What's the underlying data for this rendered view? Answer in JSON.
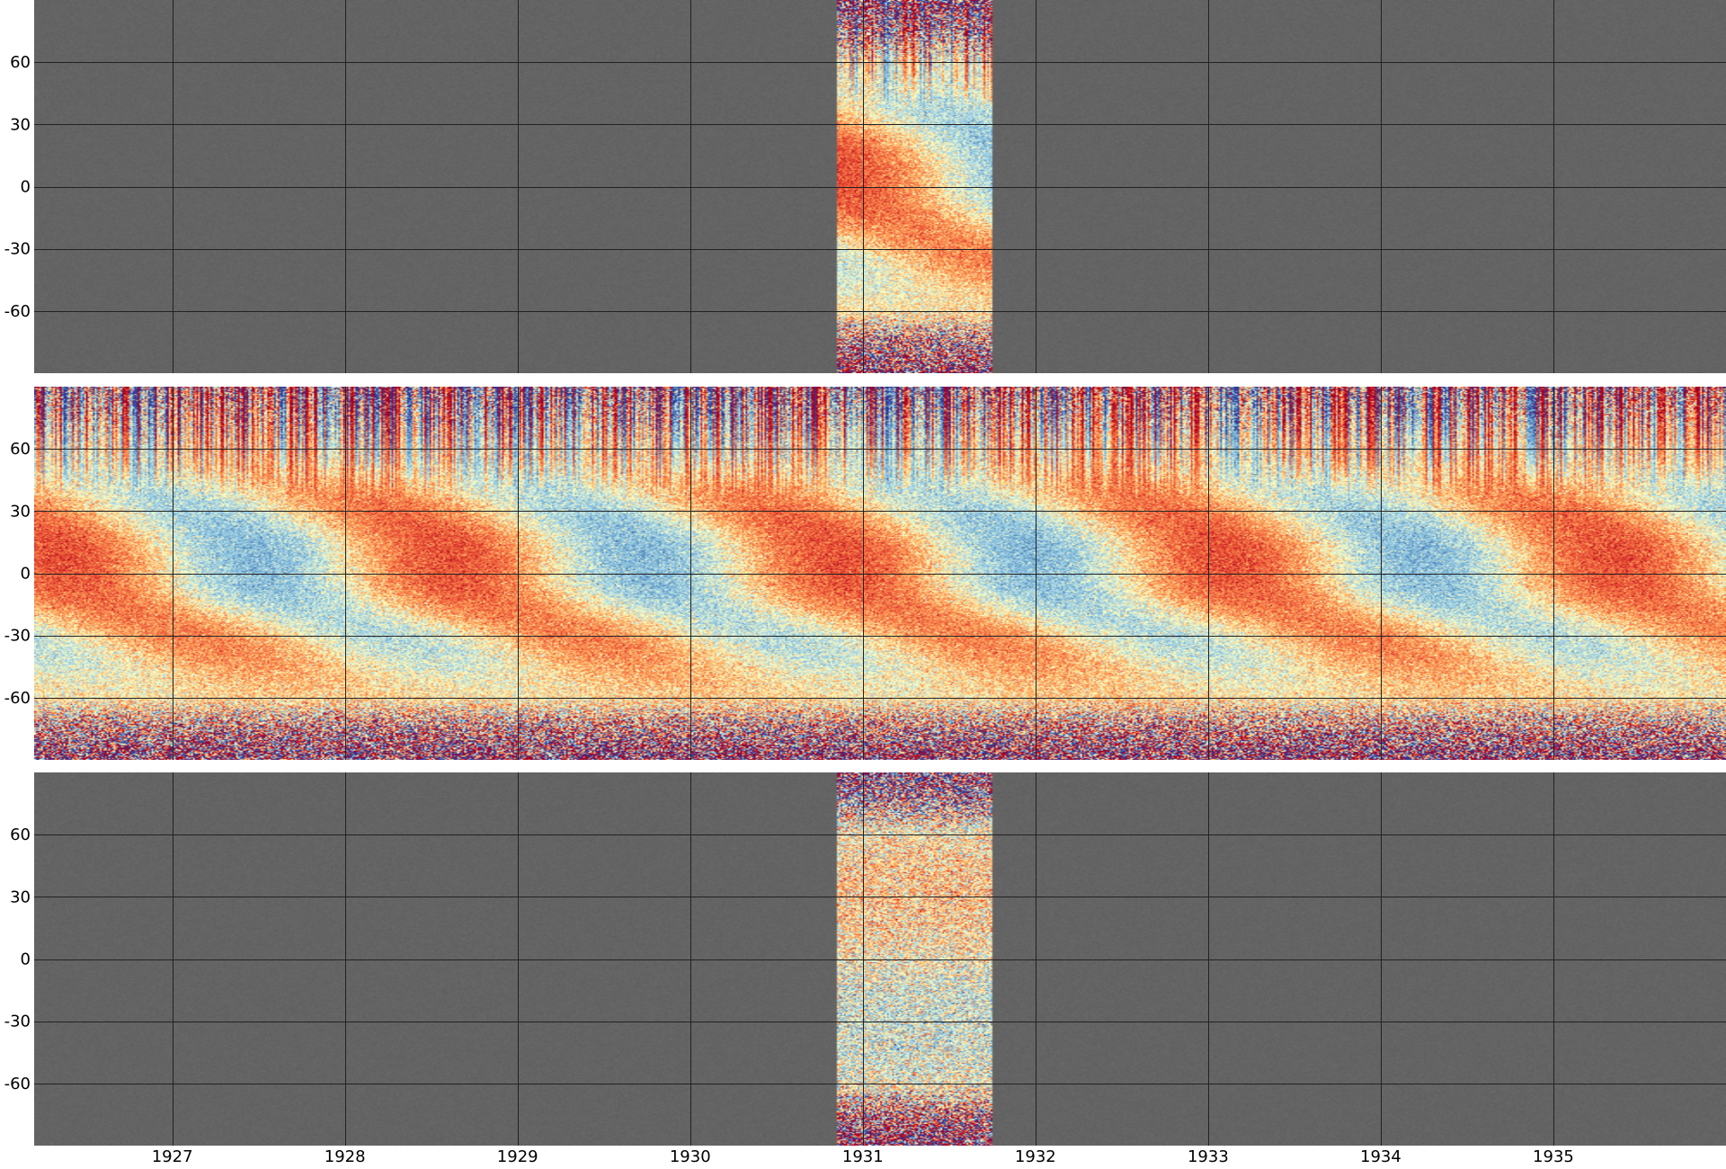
{
  "chart_data": {
    "type": "heatmap",
    "title": "",
    "xlabel": "",
    "ylabel": "",
    "xlim": [
      1926.2,
      1936.0
    ],
    "ylim": [
      -90,
      90
    ],
    "x_ticks": [
      "1927",
      "1928",
      "1929",
      "1930",
      "1931",
      "1932",
      "1933",
      "1934",
      "1935"
    ],
    "y_ticks": [
      "60",
      "30",
      "0",
      "-30",
      "-60"
    ],
    "grid": true,
    "colormap": "diverging red-yellow-blue",
    "colors": {
      "missing": "#666666",
      "grid": "#222222",
      "positive": "#b2182b",
      "negative": "#2c4ba0"
    },
    "panels": [
      {
        "coverage": [
          [
            1930.85,
            1931.75
          ]
        ]
      },
      {
        "coverage": [
          [
            1926.2,
            1936.0
          ]
        ]
      },
      {
        "coverage": [
          [
            1930.85,
            1931.75
          ]
        ]
      }
    ]
  }
}
